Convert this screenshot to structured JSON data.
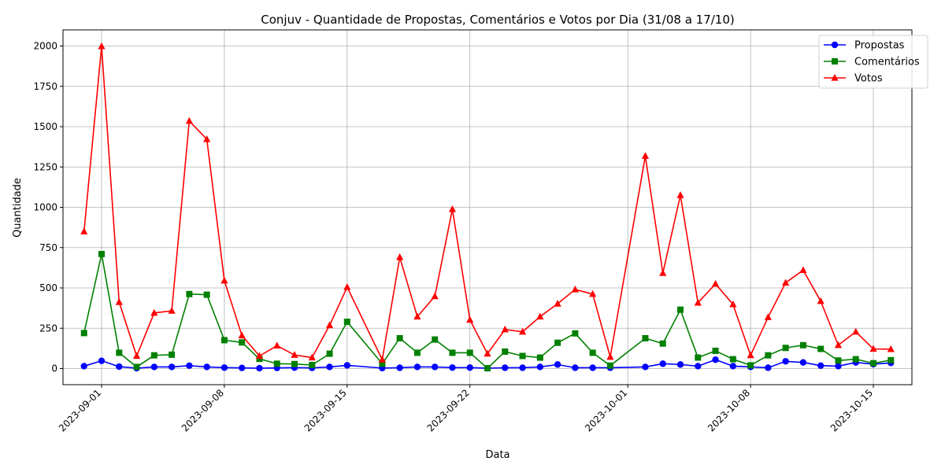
{
  "chart_data": {
    "type": "line",
    "title": "Conjuv - Quantidade de Propostas, Comentários e Votos por Dia (31/08 a 17/10)",
    "xlabel": "Data",
    "ylabel": "Quantidade",
    "x": [
      "2023-08-31",
      "2023-09-01",
      "2023-09-02",
      "2023-09-03",
      "2023-09-04",
      "2023-09-05",
      "2023-09-06",
      "2023-09-07",
      "2023-09-08",
      "2023-09-09",
      "2023-09-10",
      "2023-09-11",
      "2023-09-12",
      "2023-09-13",
      "2023-09-14",
      "2023-09-15",
      "2023-09-17",
      "2023-09-18",
      "2023-09-19",
      "2023-09-20",
      "2023-09-21",
      "2023-09-22",
      "2023-09-23",
      "2023-09-24",
      "2023-09-25",
      "2023-09-26",
      "2023-09-27",
      "2023-09-28",
      "2023-09-29",
      "2023-09-30",
      "2023-10-02",
      "2023-10-03",
      "2023-10-04",
      "2023-10-05",
      "2023-10-06",
      "2023-10-07",
      "2023-10-08",
      "2023-10-09",
      "2023-10-10",
      "2023-10-11",
      "2023-10-12",
      "2023-10-13",
      "2023-10-14",
      "2023-10-15",
      "2023-10-16"
    ],
    "series": [
      {
        "name": "Propostas",
        "color": "#0000ff",
        "marker": "circle",
        "values": [
          15,
          48,
          12,
          2,
          10,
          10,
          18,
          10,
          6,
          4,
          2,
          4,
          6,
          4,
          10,
          20,
          3,
          5,
          10,
          10,
          6,
          6,
          2,
          5,
          5,
          10,
          25,
          5,
          5,
          5,
          10,
          30,
          25,
          15,
          55,
          15,
          10,
          5,
          45,
          38,
          18,
          15,
          38,
          27,
          35
        ]
      },
      {
        "name": "Comentários",
        "color": "#008000",
        "marker": "square",
        "values": [
          220,
          710,
          98,
          10,
          82,
          86,
          462,
          458,
          176,
          162,
          60,
          30,
          28,
          22,
          92,
          290,
          30,
          188,
          98,
          180,
          98,
          98,
          2,
          105,
          78,
          68,
          160,
          218,
          98,
          18,
          188,
          155,
          365,
          68,
          110,
          58,
          20,
          82,
          128,
          145,
          122,
          50,
          58,
          33,
          52
        ]
      },
      {
        "name": "Votos",
        "color": "#ff0000",
        "marker": "triangle",
        "values": [
          850,
          1998,
          412,
          78,
          345,
          358,
          1535,
          1422,
          545,
          205,
          78,
          142,
          84,
          68,
          268,
          505,
          55,
          690,
          322,
          448,
          988,
          302,
          92,
          242,
          228,
          322,
          402,
          490,
          462,
          72,
          1318,
          592,
          1075,
          408,
          525,
          398,
          82,
          318,
          532,
          610,
          418,
          145,
          228,
          122,
          120
        ]
      }
    ],
    "ylim": [
      -100,
      2100
    ],
    "y_ticks": [
      0,
      250,
      500,
      750,
      1000,
      1250,
      1500,
      1750,
      2000
    ],
    "x_ticks": [
      "2023-09-01",
      "2023-09-08",
      "2023-09-15",
      "2023-09-22",
      "2023-10-01",
      "2023-10-08",
      "2023-10-15"
    ],
    "x_range": [
      "2023-08-29T19:12:00",
      "2023-10-17T04:48:00"
    ],
    "grid": true,
    "legend": "top-right"
  }
}
